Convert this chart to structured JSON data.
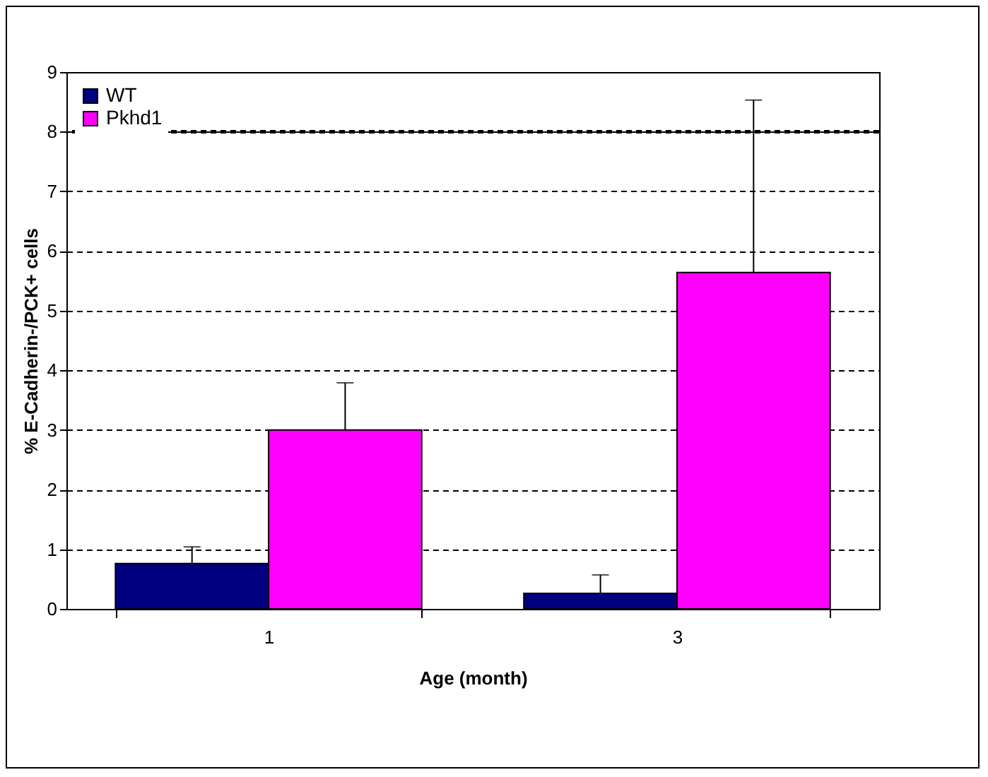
{
  "chart_data": {
    "type": "bar",
    "xlabel": "Age (month)",
    "ylabel": "% E-Cadherin-/PCK+ cells",
    "categories": [
      "1",
      "3"
    ],
    "series": [
      {
        "name": "WT",
        "color": "#000080",
        "values": [
          0.76,
          0.26
        ],
        "errors": [
          [
            0.76,
            1.04
          ],
          [
            0.26,
            0.57
          ]
        ]
      },
      {
        "name": "Pkhd1",
        "color": "#ff00ff",
        "values": [
          3.0,
          5.64
        ],
        "errors": [
          [
            3.0,
            3.79
          ],
          [
            5.64,
            8.53
          ]
        ]
      }
    ],
    "ylim": [
      0,
      9
    ],
    "yticks": [
      0,
      1,
      2,
      3,
      4,
      5,
      6,
      7,
      8,
      9
    ],
    "grid": "y",
    "legend": "top left",
    "ref_lines": [
      {
        "axis": "y",
        "value": 8,
        "line_style": "dashed"
      }
    ]
  }
}
